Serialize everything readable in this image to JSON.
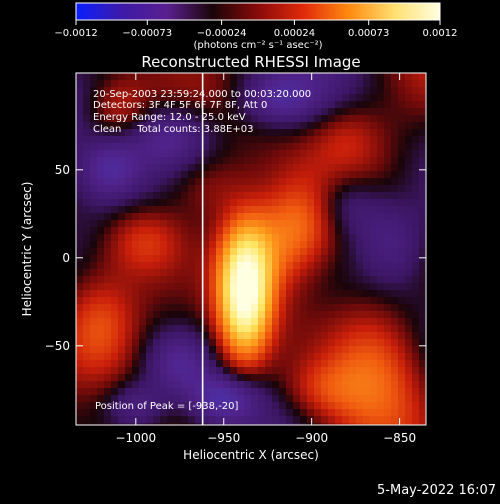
{
  "chart_data": {
    "type": "heatmap",
    "title": "Reconstructed RHESSI Image",
    "xlabel": "Heliocentric X (arcsec)",
    "ylabel": "Heliocentric Y (arcsec)",
    "xlim": [
      -1034,
      -835
    ],
    "ylim": [
      -95,
      105
    ],
    "xticks": [
      -1000,
      -950,
      -900,
      -850
    ],
    "xtick_labels": [
      "−1000",
      "−950",
      "−900",
      "−850"
    ],
    "yticks": [
      50,
      0,
      -50
    ],
    "ytick_labels": [
      "50",
      "0",
      "−50"
    ],
    "colorbar": {
      "range": [
        -0.0012,
        0.0012
      ],
      "ticks": [
        -0.0012,
        -0.00073,
        -0.00024,
        0.00024,
        0.00073,
        0.0012
      ],
      "tick_labels": [
        "−0.0012",
        "−0.00073",
        "−0.00024",
        "0.00024",
        "0.00073",
        "0.0012"
      ],
      "units": "(photons cm⁻² s⁻¹ asec⁻²)",
      "colormap": [
        "#0a1fff",
        "#3d1aa8",
        "#5a1f8f",
        "#1a0508",
        "#8a0a0a",
        "#e02a0a",
        "#ff8a10",
        "#ffe070",
        "#ffffe0"
      ]
    },
    "annotations": [
      "20-Sep-2003 23:59:24.000 to 00:03:20.000",
      "Detectors: 3F 4F 5F 6F 7F 8F, Att 0",
      "Energy Range: 12.0 - 25.0 keV",
      "Clean     Total counts: 3.88E+03"
    ],
    "peak_label": "Position of Peak = [-938,-20]",
    "peak": [
      -938,
      -20
    ],
    "limb_x": -962
  },
  "footer": {
    "date": "5-May-2022 16:07"
  }
}
